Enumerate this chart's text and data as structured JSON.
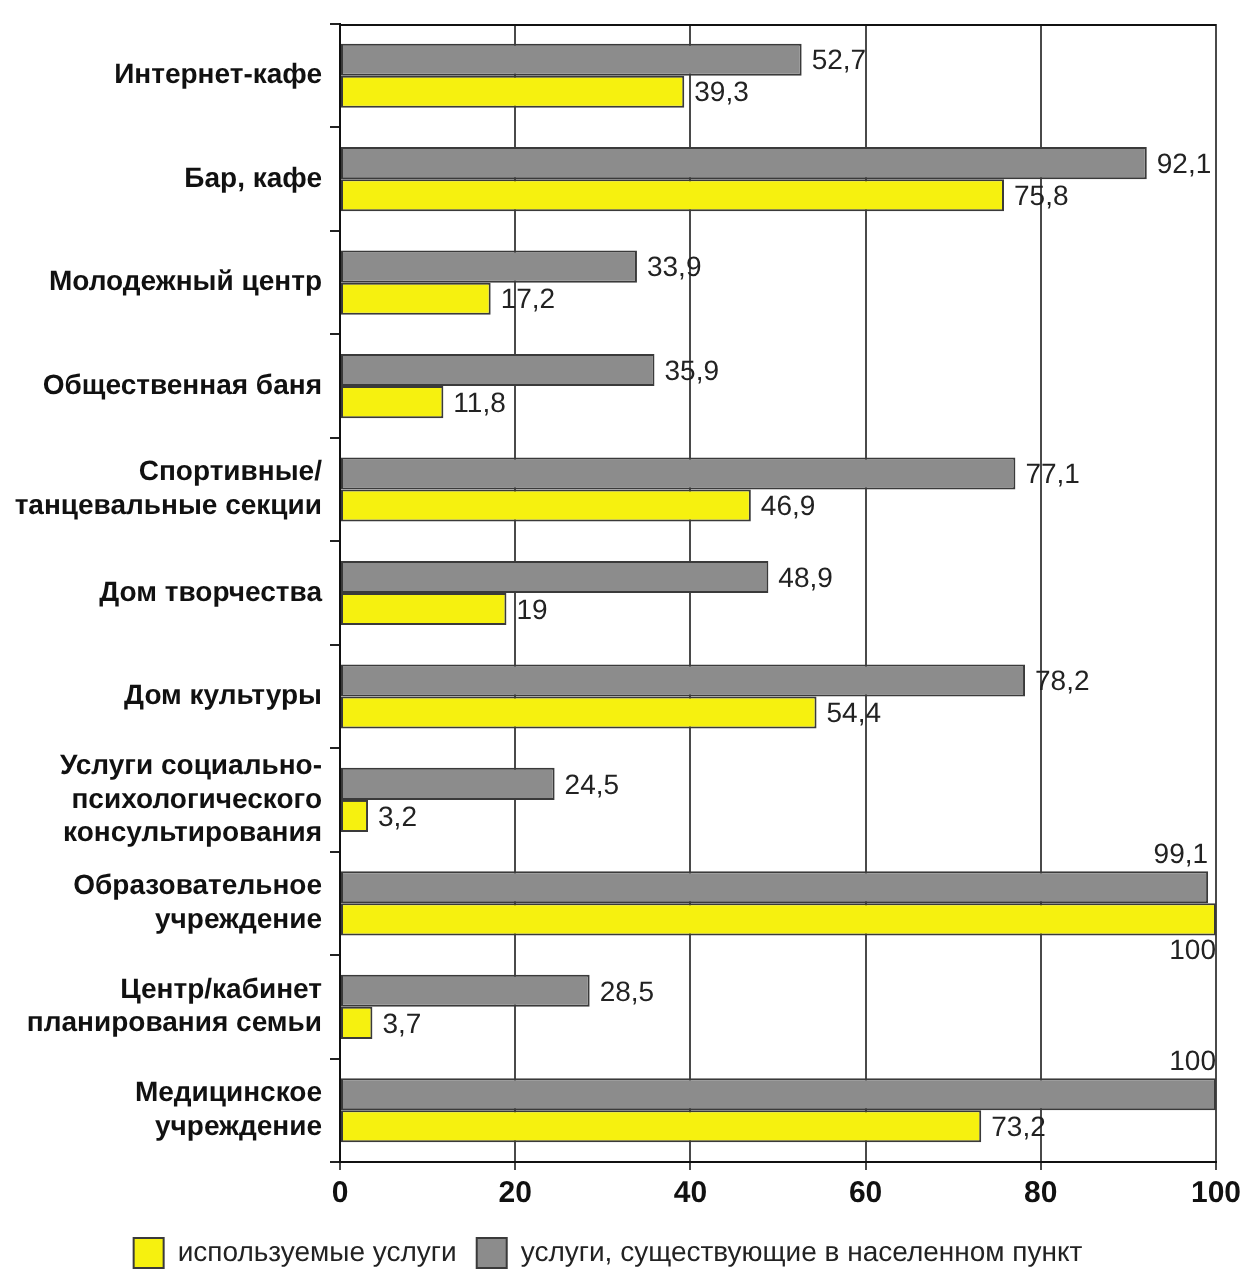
{
  "chart_data": {
    "type": "bar",
    "orientation": "horizontal",
    "categories": [
      "Интернет-кафе",
      "Бар, кафе",
      "Молодежный центр",
      "Общественная баня",
      "Спортивные/танцевальные секции",
      "Дом творчества",
      "Дом культуры",
      "Услуги социально-психологического консультирования",
      "Образовательное учреждение",
      "Центр/кабинет планирования семьи",
      "Медицинское учреждение"
    ],
    "series": [
      {
        "name": "услуги, существующие в населенном пункт",
        "color": "#8c8c8c",
        "values": [
          52.7,
          92.1,
          33.9,
          35.9,
          77.1,
          48.9,
          78.2,
          24.5,
          99.1,
          28.5,
          100
        ],
        "value_labels": [
          "52,7",
          "92,1",
          "33,9",
          "35,9",
          "77,1",
          "48,9",
          "78,2",
          "24,5",
          "99,1",
          "28,5",
          "100"
        ]
      },
      {
        "name": "используемые услуги",
        "color": "#f6f10f",
        "values": [
          39.3,
          75.8,
          17.2,
          11.8,
          46.9,
          19,
          54.4,
          3.2,
          100,
          3.7,
          73.2
        ],
        "value_labels": [
          "39,3",
          "75,8",
          "17,2",
          "11,8",
          "46,9",
          "19",
          "54,4",
          "3,2",
          "100",
          "3,7",
          "73,2"
        ]
      }
    ],
    "xlim": [
      0,
      100
    ],
    "xticks": [
      0,
      20,
      40,
      60,
      80,
      100
    ],
    "grid": "x",
    "legend": "bottom"
  }
}
